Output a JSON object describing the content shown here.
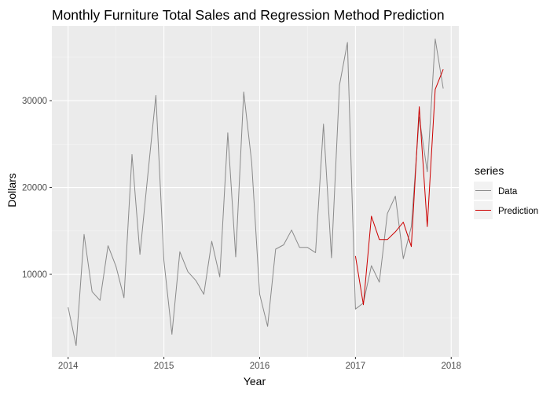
{
  "chart_data": {
    "type": "line",
    "title": "Monthly Furniture Total Sales and Regression Method Prediction",
    "xlabel": "Year",
    "ylabel": "Dollars",
    "xlim": [
      2013.83,
      2018.08
    ],
    "ylim": [
      500,
      38600
    ],
    "x_ticks": [
      2014,
      2015,
      2016,
      2017,
      2018
    ],
    "x_tick_labels": [
      "2014",
      "2015",
      "2016",
      "2017",
      "2018"
    ],
    "y_ticks": [
      10000,
      20000,
      30000
    ],
    "y_tick_labels": [
      "10000",
      "20000",
      "30000"
    ],
    "grid": true,
    "legend": {
      "title": "series",
      "position": "right"
    },
    "colors": {
      "panel": "#ebebeb",
      "grid_major": "#ffffff",
      "grid_minor": "#f5f5f5",
      "Data": "#8a8a8a",
      "Prediction": "#cc0000"
    },
    "series": [
      {
        "name": "Data",
        "x": [
          "2014-01",
          "2014-02",
          "2014-03",
          "2014-04",
          "2014-05",
          "2014-06",
          "2014-07",
          "2014-08",
          "2014-09",
          "2014-10",
          "2014-11",
          "2014-12",
          "2015-01",
          "2015-02",
          "2015-03",
          "2015-04",
          "2015-05",
          "2015-06",
          "2015-07",
          "2015-08",
          "2015-09",
          "2015-10",
          "2015-11",
          "2015-12",
          "2016-01",
          "2016-02",
          "2016-03",
          "2016-04",
          "2016-05",
          "2016-06",
          "2016-07",
          "2016-08",
          "2016-09",
          "2016-10",
          "2016-11",
          "2016-12",
          "2017-01",
          "2017-02",
          "2017-03",
          "2017-04",
          "2017-05",
          "2017-06",
          "2017-07",
          "2017-08",
          "2017-09",
          "2017-10",
          "2017-11",
          "2017-12"
        ],
        "values": [
          6200,
          1800,
          14600,
          8000,
          7000,
          13300,
          10900,
          7300,
          23800,
          12300,
          21600,
          30600,
          11600,
          3100,
          12600,
          10300,
          9300,
          7700,
          13800,
          9700,
          26300,
          12000,
          31000,
          22900,
          7700,
          4000,
          12900,
          13400,
          15100,
          13100,
          13100,
          12500,
          27300,
          11900,
          31800,
          36700,
          6000,
          6700,
          11000,
          9100,
          17000,
          19000,
          11800,
          15500,
          28100,
          21800,
          37100,
          31400
        ]
      },
      {
        "name": "Prediction",
        "x": [
          "2017-01",
          "2017-02",
          "2017-03",
          "2017-04",
          "2017-05",
          "2017-06",
          "2017-07",
          "2017-08",
          "2017-09",
          "2017-10",
          "2017-11",
          "2017-12"
        ],
        "values": [
          12100,
          6500,
          16700,
          14000,
          14000,
          14900,
          16000,
          13200,
          29300,
          15500,
          31300,
          33600
        ]
      }
    ]
  }
}
